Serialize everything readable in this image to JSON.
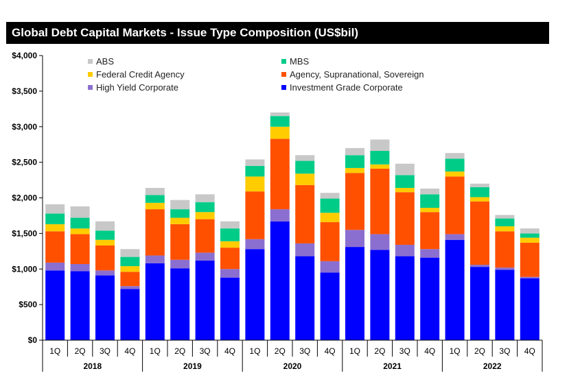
{
  "chart_data": {
    "type": "bar",
    "stacked": true,
    "title": "Global Debt Capital Markets - Issue Type Composition (US$bil)",
    "ylim": [
      0,
      4000
    ],
    "yticks": [
      "$0",
      "$500",
      "$1,000",
      "$1,500",
      "$2,000",
      "$2,500",
      "$3,000",
      "$3,500",
      "$4,000"
    ],
    "ytick_values": [
      0,
      500,
      1000,
      1500,
      2000,
      2500,
      3000,
      3500,
      4000
    ],
    "grid": false,
    "legend_position": "top",
    "categories": [
      "1Q",
      "2Q",
      "3Q",
      "4Q",
      "1Q",
      "2Q",
      "3Q",
      "4Q",
      "1Q",
      "2Q",
      "3Q",
      "4Q",
      "1Q",
      "2Q",
      "3Q",
      "4Q",
      "1Q",
      "2Q",
      "3Q",
      "4Q"
    ],
    "groups": [
      {
        "label": "2018",
        "count": 4
      },
      {
        "label": "2019",
        "count": 4
      },
      {
        "label": "2020",
        "count": 4
      },
      {
        "label": "2021",
        "count": 4
      },
      {
        "label": "2022",
        "count": 4
      }
    ],
    "series": [
      {
        "name": "Investment Grade Corporate",
        "color": "#0000FF",
        "values": [
          980,
          970,
          910,
          720,
          1080,
          1010,
          1120,
          880,
          1280,
          1670,
          1180,
          950,
          1310,
          1270,
          1180,
          1160,
          1410,
          1030,
          990,
          870
        ]
      },
      {
        "name": "High Yield Corporate",
        "color": "#8B6FD0",
        "values": [
          110,
          100,
          70,
          40,
          110,
          120,
          110,
          120,
          140,
          170,
          180,
          160,
          240,
          220,
          160,
          120,
          80,
          30,
          30,
          20
        ]
      },
      {
        "name": "Agency, Supranational, Sovereign",
        "color": "#FF5000",
        "values": [
          440,
          420,
          350,
          200,
          650,
          500,
          470,
          300,
          670,
          990,
          820,
          550,
          800,
          920,
          740,
          520,
          810,
          890,
          510,
          480
        ]
      },
      {
        "name": "Federal Credit Agency",
        "color": "#FFCC00",
        "values": [
          100,
          80,
          80,
          80,
          90,
          90,
          100,
          90,
          210,
          170,
          160,
          130,
          70,
          60,
          60,
          60,
          70,
          60,
          70,
          70
        ]
      },
      {
        "name": "MBS",
        "color": "#00CC88",
        "values": [
          150,
          150,
          130,
          130,
          110,
          120,
          140,
          180,
          150,
          150,
          180,
          200,
          180,
          190,
          180,
          190,
          180,
          140,
          110,
          60
        ]
      },
      {
        "name": "ABS",
        "color": "#C8C8C8",
        "values": [
          130,
          160,
          130,
          110,
          100,
          130,
          110,
          100,
          90,
          50,
          80,
          80,
          100,
          160,
          160,
          80,
          80,
          50,
          50,
          70
        ]
      }
    ],
    "legend_order": [
      "ABS",
      "MBS",
      "Federal Credit Agency",
      "Agency, Supranational, Sovereign",
      "High Yield Corporate",
      "Investment Grade Corporate"
    ]
  }
}
